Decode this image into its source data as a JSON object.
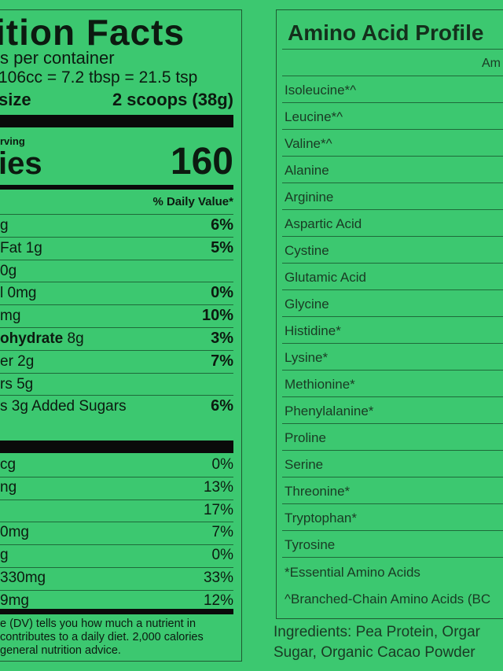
{
  "nutrition": {
    "title": "ition Facts",
    "servings": "s per container",
    "volume": "106cc = 7.2 tbsp = 21.5 tsp",
    "serving_size_label": "size",
    "serving_size_value": "2 scoops (38g)",
    "per_serving": "rving",
    "calories_label": "ies",
    "calories_value": "160",
    "dv_header": "% Daily Value*",
    "rows": [
      {
        "label": "g",
        "value": "6%",
        "bold": true
      },
      {
        "label": "Fat 1g",
        "value": "5%",
        "bold": true
      },
      {
        "label": "0g",
        "value": "",
        "bold": true
      },
      {
        "label": "l 0mg",
        "value": "0%",
        "bold": true
      },
      {
        "label": "mg",
        "value": "10%",
        "bold": true
      },
      {
        "label": "ohydrate",
        "label2": " 8g",
        "value": "3%",
        "bold": true
      },
      {
        "label": "er 2g",
        "value": "7%",
        "bold": true
      },
      {
        "label": "rs 5g",
        "value": "",
        "bold": true
      },
      {
        "label": "s 3g Added Sugars",
        "value": "6%",
        "bold": true
      }
    ],
    "vitamins": [
      {
        "label": "cg",
        "value": "0%"
      },
      {
        "label": "ng",
        "value": "13%"
      },
      {
        "label": "",
        "value": "17%"
      },
      {
        "label": "0mg",
        "value": "7%"
      },
      {
        "label": "g",
        "value": "0%"
      },
      {
        "label": "330mg",
        "value": "33%"
      },
      {
        "label": "9mg",
        "value": "12%"
      }
    ],
    "footnote": [
      "e (DV) tells you how much a nutrient in",
      "contributes to a daily diet. 2,000 calories",
      "general nutrition advice."
    ]
  },
  "amino": {
    "title": "Amino Acid Profile",
    "column_header": "Am",
    "rows": [
      "Isoleucine*^",
      "Leucine*^",
      "Valine*^",
      "Alanine",
      "Arginine",
      "Aspartic Acid",
      "Cystine",
      "Glutamic Acid",
      "Glycine",
      "Histidine*",
      "Lysine*",
      "Methionine*",
      "Phenylalanine*",
      "Proline",
      "Serine",
      "Threonine*",
      "Tryptophan*",
      "Tyrosine"
    ],
    "footnote_essential": "*Essential Amino Acids",
    "footnote_bcaa": "^Branched-Chain Amino Acids (BC"
  },
  "ingredients": [
    "Ingredients: Pea Protein, Orgar",
    "Sugar, Organic Cacao Powder"
  ],
  "colors": {
    "background": "#3cc870",
    "text": "#0c1a10"
  }
}
